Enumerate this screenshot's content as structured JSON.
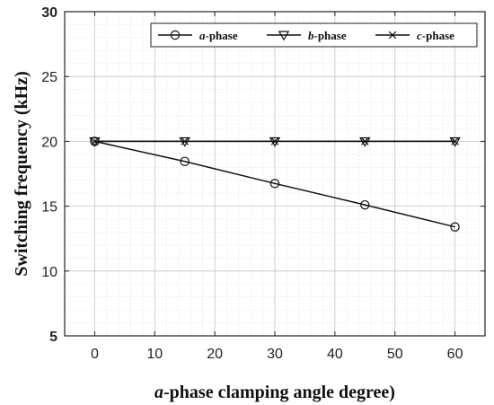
{
  "chart_data": {
    "type": "line",
    "xlabel_prefix": "a",
    "xlabel_rest": "-phase clamping angle degree)",
    "ylabel": "Switching frequency (kHz)",
    "xlim": [
      -5,
      65
    ],
    "ylim": [
      5,
      30
    ],
    "xticks": [
      0,
      10,
      20,
      30,
      40,
      50,
      60
    ],
    "yticks": [
      5,
      10,
      15,
      20,
      25,
      30
    ],
    "grid": true,
    "legend_position": "top-right",
    "x": [
      0,
      15,
      30,
      45,
      60
    ],
    "series": [
      {
        "name_prefix": "a",
        "name_rest": "-phase",
        "marker": "circle",
        "values": [
          20,
          18.45,
          16.75,
          15.1,
          13.4
        ]
      },
      {
        "name_prefix": "b",
        "name_rest": "-phase",
        "marker": "triangle-down",
        "values": [
          20,
          20,
          20,
          20,
          20
        ]
      },
      {
        "name_prefix": "c",
        "name_rest": "-phase",
        "marker": "cross",
        "values": [
          20,
          20,
          20,
          20,
          20
        ]
      }
    ]
  }
}
